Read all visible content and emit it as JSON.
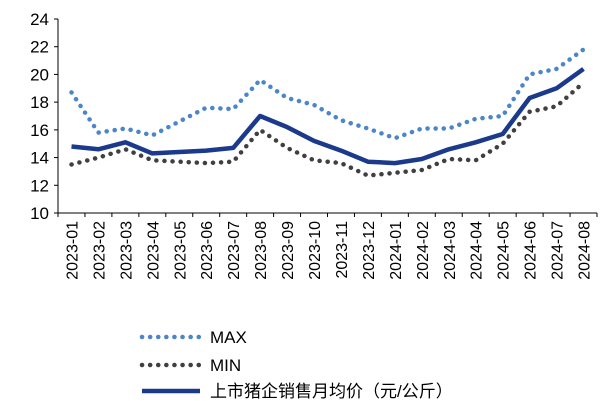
{
  "chart_data": {
    "type": "line",
    "title": "",
    "xlabel": "",
    "ylabel": "",
    "ylim": [
      10,
      24
    ],
    "yticks": [
      10,
      12,
      14,
      16,
      18,
      20,
      22,
      24
    ],
    "grid": false,
    "legend_position": "bottom",
    "categories": [
      "2023-01",
      "2023-02",
      "2023-03",
      "2023-04",
      "2023-05",
      "2023-06",
      "2023-07",
      "2023-08",
      "2023-09",
      "2023-10",
      "2023-11",
      "2023-12",
      "2024-01",
      "2024-02",
      "2024-03",
      "2024-04",
      "2024-05",
      "2024-06",
      "2024-07",
      "2024-08"
    ],
    "series": [
      {
        "name": "MAX",
        "style": "dotted",
        "color": "#4A86C8",
        "values": [
          18.7,
          15.8,
          16.1,
          15.6,
          16.6,
          17.6,
          17.5,
          19.6,
          18.3,
          17.8,
          16.7,
          16.1,
          15.4,
          16.1,
          16.1,
          16.8,
          17.0,
          20.0,
          20.4,
          21.8
        ]
      },
      {
        "name": "MIN",
        "style": "dotted",
        "color": "#404040",
        "values": [
          13.5,
          14.0,
          14.6,
          13.8,
          13.7,
          13.6,
          13.7,
          16.0,
          14.7,
          13.8,
          13.6,
          12.7,
          12.9,
          13.1,
          13.9,
          13.8,
          15.0,
          17.3,
          17.7,
          19.4
        ]
      },
      {
        "name": "上市猪企销售月均价（元/公斤）",
        "style": "solid",
        "color": "#1B3A8C",
        "values": [
          14.8,
          14.6,
          15.1,
          14.3,
          14.4,
          14.5,
          14.7,
          17.0,
          16.2,
          15.2,
          14.5,
          13.7,
          13.6,
          13.9,
          14.6,
          15.1,
          15.7,
          18.3,
          19.0,
          20.4
        ]
      }
    ]
  }
}
